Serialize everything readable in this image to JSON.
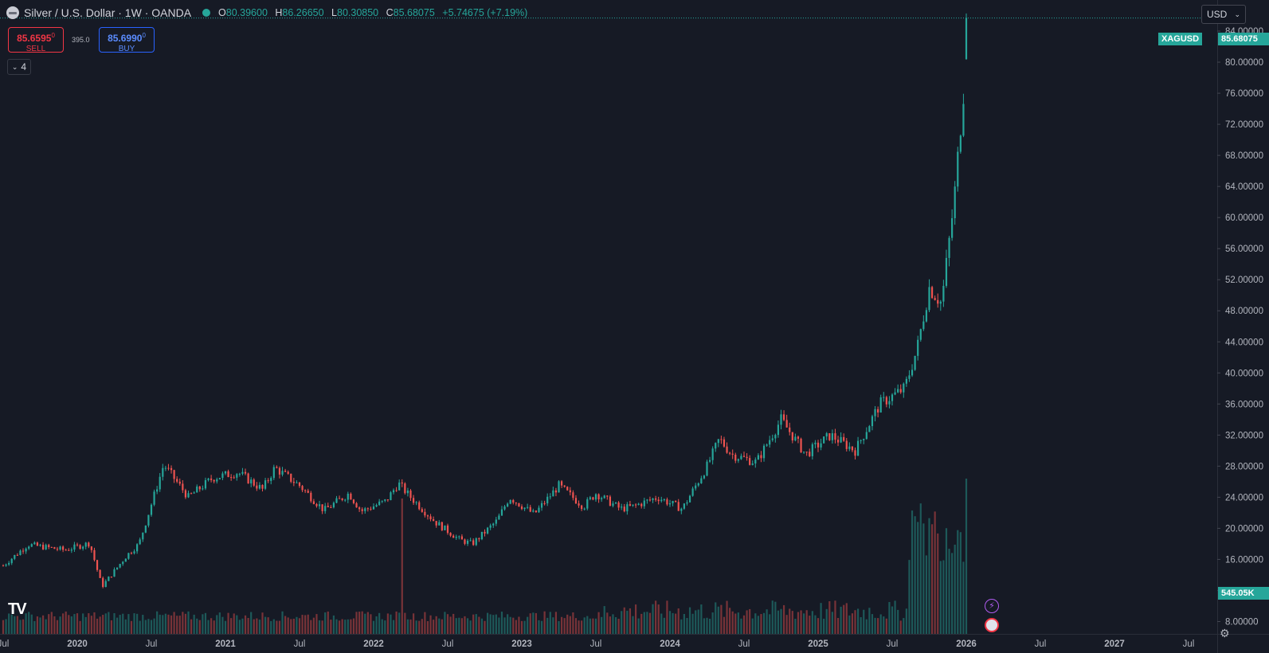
{
  "header": {
    "title": "Silver / U.S. Dollar · 1W · OANDA",
    "o_label": "O",
    "o": "80.39600",
    "h_label": "H",
    "h": "86.26650",
    "l_label": "L",
    "l": "80.30850",
    "c_label": "C",
    "c": "85.68075",
    "change": "+5.74675 (+7.19%)"
  },
  "trade": {
    "sell_price": "85.6595",
    "sell_sup": "0",
    "sell_label": "SELL",
    "spread": "395.0",
    "buy_price": "85.6990",
    "buy_sup": "0",
    "buy_label": "BUY"
  },
  "indicators_count": "4",
  "currency": "USD",
  "symbol_tag": "XAGUSD",
  "last_price_tag": "85.68075",
  "volume_tag": "545.05K",
  "colors": {
    "up": "#26a69a",
    "down": "#ef5350",
    "background": "#161a25"
  },
  "chart_data": {
    "type": "candlestick",
    "ylim": [
      6,
      88
    ],
    "yticks": [
      "8.00000",
      "12.00000",
      "16.00000",
      "20.00000",
      "24.00000",
      "28.00000",
      "32.00000",
      "36.00000",
      "40.00000",
      "44.00000",
      "48.00000",
      "52.00000",
      "56.00000",
      "60.00000",
      "64.00000",
      "68.00000",
      "72.00000",
      "76.00000",
      "80.00000",
      "84.00000"
    ],
    "xticks": [
      "Jul",
      "2020",
      "Jul",
      "2021",
      "Jul",
      "2022",
      "Jul",
      "2023",
      "Jul",
      "2024",
      "Jul",
      "2025",
      "Jul",
      "2026",
      "Jul",
      "2027",
      "Jul"
    ],
    "close_path": [
      [
        "2019-07",
        15.2
      ],
      [
        "2019-09",
        17.9
      ],
      [
        "2019-12",
        17.2
      ],
      [
        "2020-02",
        18.1
      ],
      [
        "2020-03",
        12.5
      ],
      [
        "2020-05",
        16.5
      ],
      [
        "2020-06",
        18.0
      ],
      [
        "2020-08",
        28.2
      ],
      [
        "2020-10",
        24.0
      ],
      [
        "2020-12",
        26.5
      ],
      [
        "2021-02",
        27.2
      ],
      [
        "2021-04",
        25.0
      ],
      [
        "2021-05",
        27.8
      ],
      [
        "2021-07",
        25.5
      ],
      [
        "2021-09",
        22.3
      ],
      [
        "2021-11",
        24.5
      ],
      [
        "2021-12",
        22.2
      ],
      [
        "2022-02",
        23.5
      ],
      [
        "2022-03",
        25.8
      ],
      [
        "2022-04",
        24.0
      ],
      [
        "2022-06",
        20.8
      ],
      [
        "2022-08",
        18.5
      ],
      [
        "2022-09",
        18.0
      ],
      [
        "2022-11",
        21.0
      ],
      [
        "2022-12",
        24.0
      ],
      [
        "2023-02",
        21.8
      ],
      [
        "2023-04",
        25.5
      ],
      [
        "2023-06",
        22.8
      ],
      [
        "2023-07",
        24.5
      ],
      [
        "2023-09",
        22.5
      ],
      [
        "2023-10",
        22.8
      ],
      [
        "2023-12",
        24.0
      ],
      [
        "2024-02",
        22.5
      ],
      [
        "2024-04",
        28.0
      ],
      [
        "2024-05",
        31.5
      ],
      [
        "2024-06",
        29.5
      ],
      [
        "2024-08",
        28.5
      ],
      [
        "2024-10",
        34.0
      ],
      [
        "2024-12",
        29.5
      ],
      [
        "2025-02",
        32.0
      ],
      [
        "2025-04",
        30.0
      ],
      [
        "2025-06",
        36.0
      ],
      [
        "2025-08",
        38.0
      ],
      [
        "2025-09",
        43.0
      ],
      [
        "2025-10",
        51.0
      ],
      [
        "2025-11",
        49.0
      ],
      [
        "2025-12",
        62.0
      ],
      [
        "2026-01",
        80.4
      ]
    ],
    "last_candle": {
      "o": 80.396,
      "h": 86.2665,
      "l": 80.3085,
      "c": 85.68075
    },
    "volume_last": "545.05K"
  }
}
